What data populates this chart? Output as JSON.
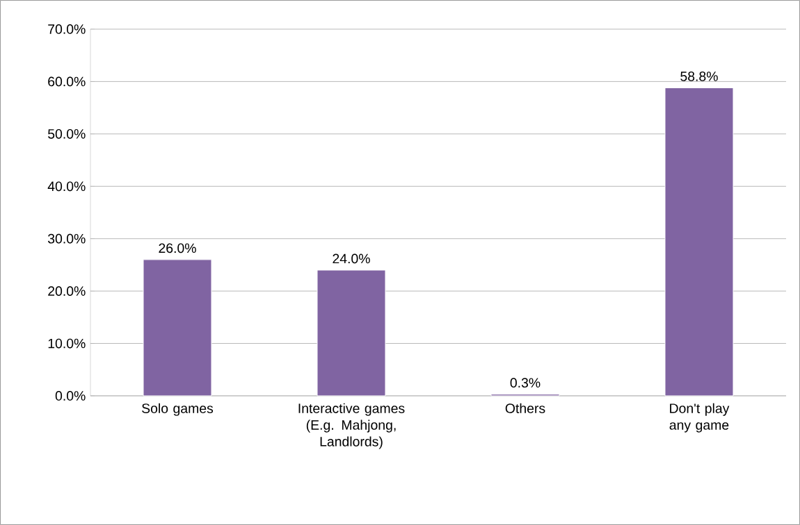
{
  "chart_data": {
    "type": "bar",
    "categories": [
      "Solo games",
      "Interactive games (E.g. Mahjong, Landlords)",
      "Others",
      "Don't play any game"
    ],
    "values": [
      26.0,
      24.0,
      0.3,
      58.8
    ],
    "color": "#8064a2",
    "value_labels": [
      "26.0%",
      "24.0%",
      "0.3%",
      "58.8%"
    ],
    "ylim": [
      0,
      70
    ],
    "yticks": [
      {
        "value": 0,
        "label": "0.0%"
      },
      {
        "value": 10,
        "label": "10.0%"
      },
      {
        "value": 20,
        "label": "20.0%"
      },
      {
        "value": 30,
        "label": "30.0%"
      },
      {
        "value": 40,
        "label": "40.0%"
      },
      {
        "value": 50,
        "label": "50.0%"
      },
      {
        "value": 60,
        "label": "60.0%"
      },
      {
        "value": 70,
        "label": "70.0%"
      }
    ],
    "grid": "y"
  }
}
